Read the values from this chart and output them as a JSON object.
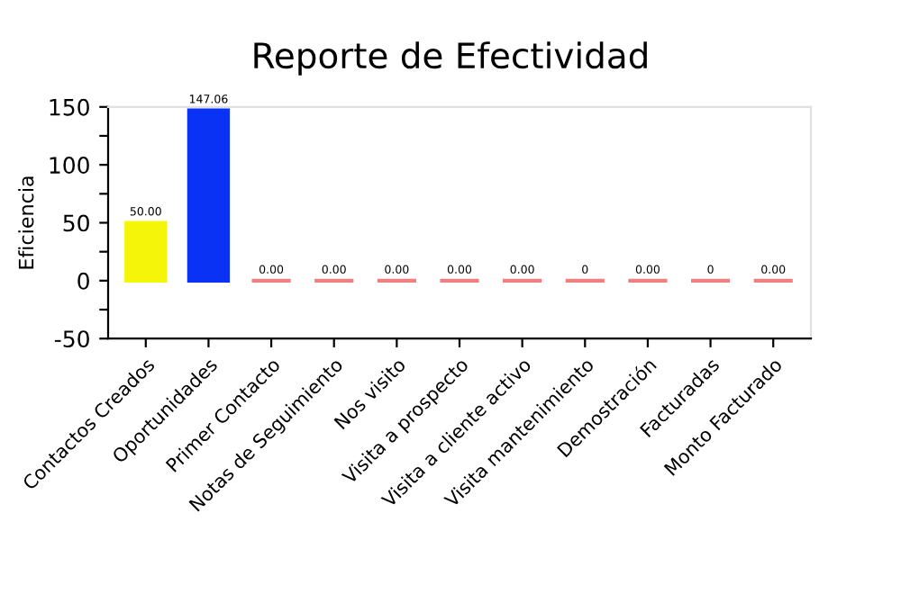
{
  "chart_data": {
    "type": "bar",
    "title": "Reporte de Efectividad",
    "ylabel": "Eficiencia",
    "categories": [
      "Contactos Creados",
      "Oportunidades",
      "Primer Contacto",
      "Notas de Seguimiento",
      "Nos visito",
      "Visita a prospecto",
      "Visita a cliente activo",
      "Visita mantenimiento",
      "Demostración",
      "Facturadas",
      "Monto Facturado"
    ],
    "values": [
      50,
      147.06,
      0,
      0,
      0,
      0,
      0,
      0,
      0,
      0,
      0
    ],
    "colors": [
      "#f5f50a",
      "#0a32f5",
      "#f08080",
      "#f08080",
      "#f08080",
      "#f08080",
      "#f08080",
      "#f08080",
      "#f08080",
      "#f08080",
      "#f08080"
    ],
    "value_labels": [
      "50.00",
      "147.06",
      "0.00",
      "0.00",
      "0.00",
      "0.00",
      "0.00",
      "0",
      "0.00",
      "0",
      "0.00"
    ],
    "ylim": [
      -50,
      150
    ],
    "yticks": [
      -50,
      {
        "value": -25,
        "label": null
      },
      0,
      {
        "value": 25,
        "label": null
      },
      50,
      {
        "value": 75,
        "label": null
      },
      100,
      {
        "value": 125,
        "label": null
      },
      150
    ],
    "grid": false,
    "legend": false
  }
}
